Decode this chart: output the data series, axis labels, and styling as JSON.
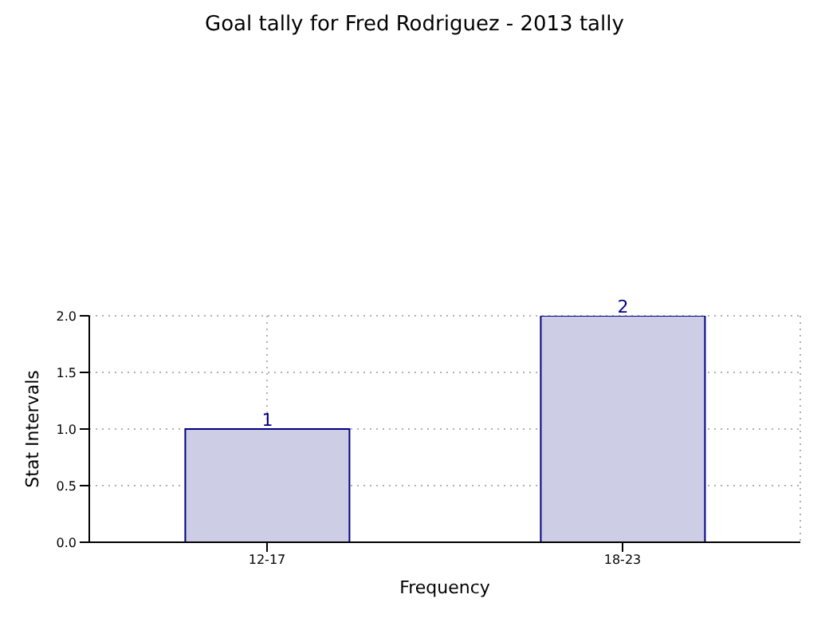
{
  "chart_data": {
    "type": "bar",
    "title": "Goal tally for Fred Rodriguez - 2013 tally",
    "xlabel": "Frequency",
    "ylabel": "Stat Intervals",
    "categories": [
      "12-17",
      "18-23"
    ],
    "series": [
      {
        "color": "#cdcde6",
        "values": [
          1,
          2
        ]
      }
    ],
    "ylim": [
      0,
      2
    ],
    "yticks": [
      {
        "value": 0,
        "label": "0.0"
      },
      {
        "value": 0.5,
        "label": "0.5"
      },
      {
        "value": 1,
        "label": "1.0"
      },
      {
        "value": 1.5,
        "label": "1.5"
      },
      {
        "value": 2,
        "label": "2.0"
      }
    ],
    "grid": true,
    "data_labels": true
  }
}
